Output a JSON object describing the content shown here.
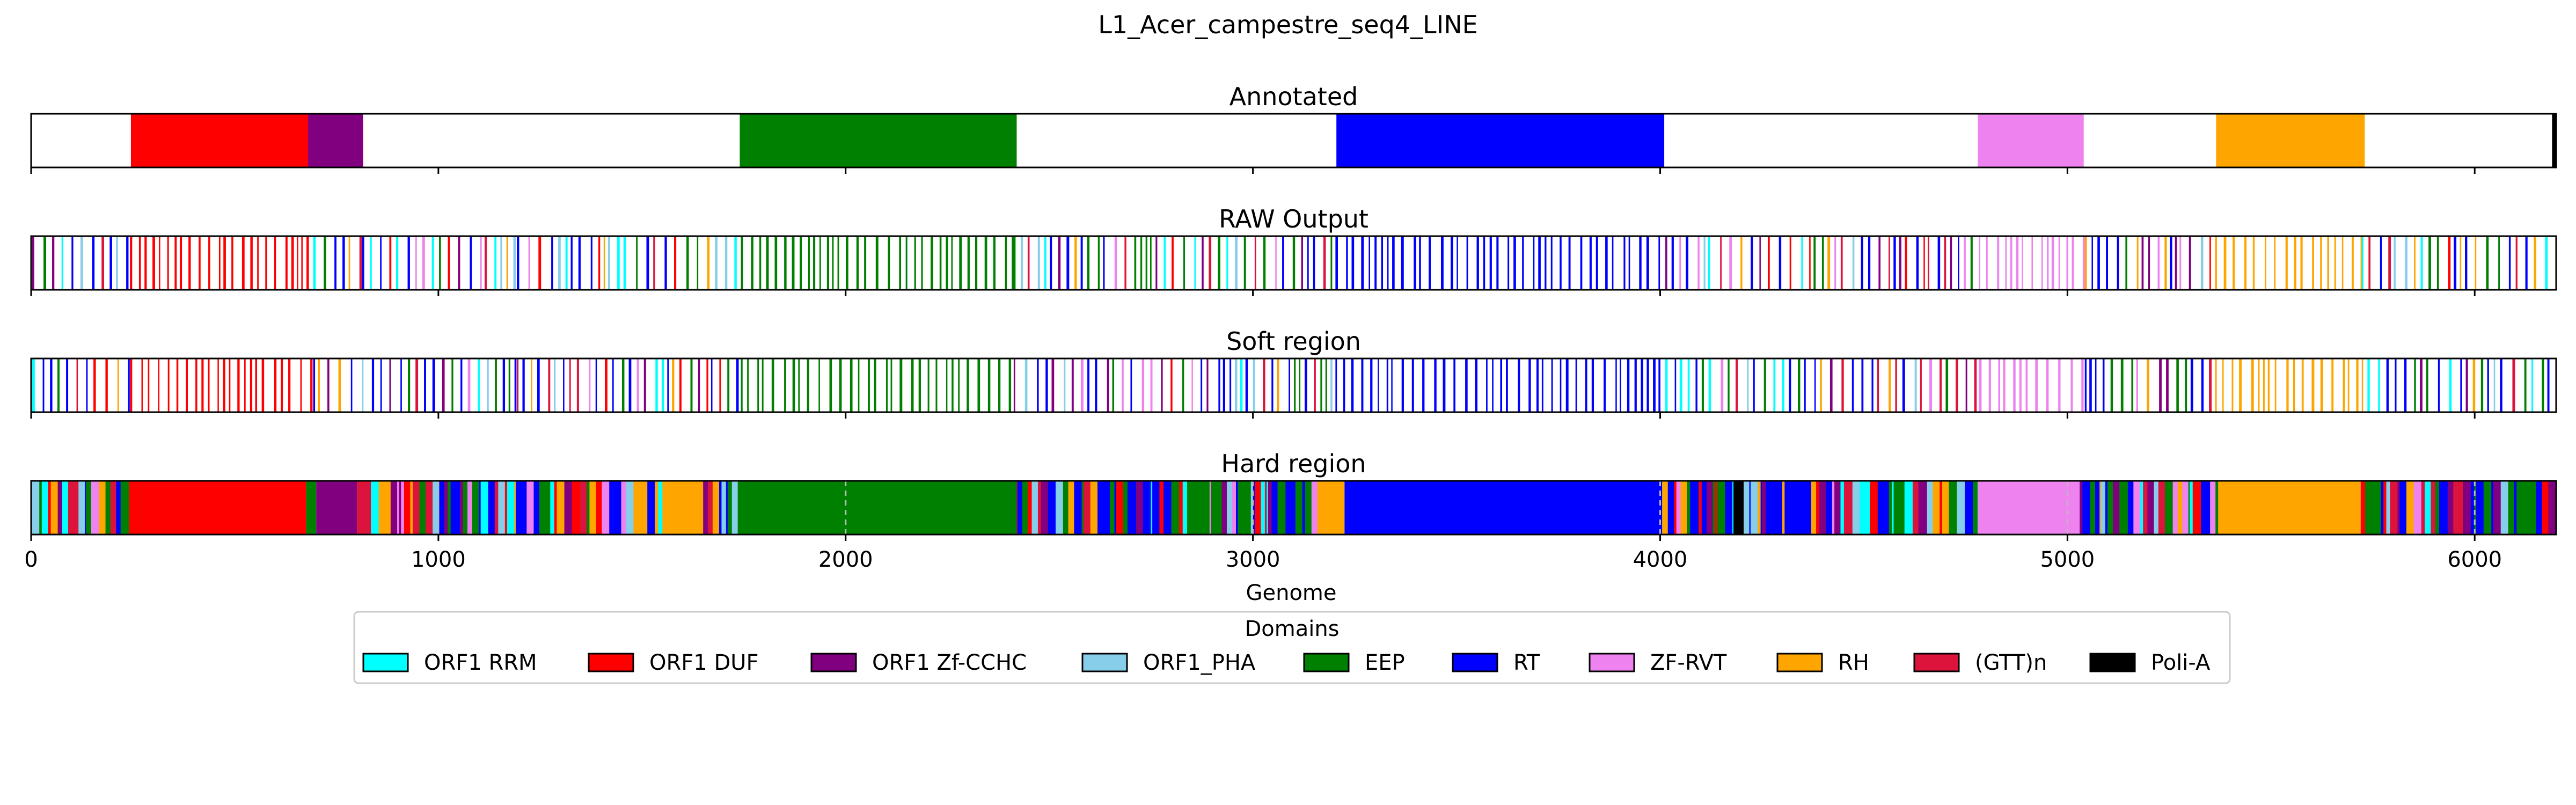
{
  "chart_data": {
    "type": "genome-track",
    "title": "L1_Acer_campestre_seq4_LINE",
    "xlabel": "Genome",
    "xlim": [
      0,
      6200
    ],
    "xticks": [
      0,
      1000,
      2000,
      3000,
      4000,
      5000,
      6000
    ],
    "grid": "dashed vertical lines at x ticks on Hard region track",
    "domains": [
      {
        "key": "rrm",
        "label": "ORF1 RRM",
        "color": "#00FFFF"
      },
      {
        "key": "duf",
        "label": "ORF1 DUF",
        "color": "#FF0000"
      },
      {
        "key": "zf",
        "label": "ORF1 Zf-CCHC",
        "color": "#800080"
      },
      {
        "key": "pha",
        "label": "ORF1_PHA",
        "color": "#87CEEB"
      },
      {
        "key": "eep",
        "label": "EEP",
        "color": "#008000"
      },
      {
        "key": "rt",
        "label": "RT",
        "color": "#0000FF"
      },
      {
        "key": "zfrvt",
        "label": "ZF-RVT",
        "color": "#EE82EE"
      },
      {
        "key": "rh",
        "label": "RH",
        "color": "#FFA500"
      },
      {
        "key": "gtt",
        "label": "(GTT)n",
        "color": "#DC143C"
      },
      {
        "key": "polia",
        "label": "Poli-A",
        "color": "#000000"
      }
    ],
    "legend_title": "Domains",
    "legend_placement": "bottom-center",
    "tracks": [
      {
        "title": "Annotated",
        "style": "solid",
        "segments": [
          {
            "start": 245,
            "end": 680,
            "domain": "duf"
          },
          {
            "start": 680,
            "end": 815,
            "domain": "zf"
          },
          {
            "start": 1740,
            "end": 2420,
            "domain": "eep"
          },
          {
            "start": 3205,
            "end": 4010,
            "domain": "rt"
          },
          {
            "start": 4780,
            "end": 5040,
            "domain": "zfrvt"
          },
          {
            "start": 5365,
            "end": 5730,
            "domain": "rh"
          },
          {
            "start": 6190,
            "end": 6200,
            "domain": "polia"
          }
        ]
      },
      {
        "title": "RAW Output",
        "style": "stripes",
        "segments": [
          {
            "start": 0,
            "end": 240,
            "domain": "mix"
          },
          {
            "start": 240,
            "end": 690,
            "domain": "duf"
          },
          {
            "start": 690,
            "end": 810,
            "domain": "mix"
          },
          {
            "start": 810,
            "end": 1190,
            "domain": "mix"
          },
          {
            "start": 1190,
            "end": 1740,
            "domain": "mix"
          },
          {
            "start": 1740,
            "end": 2410,
            "domain": "eep"
          },
          {
            "start": 2410,
            "end": 3200,
            "domain": "mix"
          },
          {
            "start": 3200,
            "end": 4010,
            "domain": "rt"
          },
          {
            "start": 4010,
            "end": 4780,
            "domain": "mix"
          },
          {
            "start": 4780,
            "end": 5040,
            "domain": "zfrvt"
          },
          {
            "start": 5040,
            "end": 5360,
            "domain": "mix"
          },
          {
            "start": 5360,
            "end": 5720,
            "domain": "rh"
          },
          {
            "start": 5720,
            "end": 6200,
            "domain": "mix"
          }
        ]
      },
      {
        "title": "Soft region",
        "style": "stripes",
        "segments": [
          {
            "start": 0,
            "end": 240,
            "domain": "mix"
          },
          {
            "start": 240,
            "end": 690,
            "domain": "duf"
          },
          {
            "start": 690,
            "end": 810,
            "domain": "mix"
          },
          {
            "start": 810,
            "end": 1190,
            "domain": "mix"
          },
          {
            "start": 1190,
            "end": 1740,
            "domain": "mix"
          },
          {
            "start": 1740,
            "end": 2410,
            "domain": "eep"
          },
          {
            "start": 2410,
            "end": 3200,
            "domain": "mix"
          },
          {
            "start": 3200,
            "end": 4010,
            "domain": "rt"
          },
          {
            "start": 4010,
            "end": 4780,
            "domain": "mix"
          },
          {
            "start": 4780,
            "end": 5040,
            "domain": "zfrvt"
          },
          {
            "start": 5040,
            "end": 5360,
            "domain": "mix"
          },
          {
            "start": 5360,
            "end": 5720,
            "domain": "rh"
          },
          {
            "start": 5720,
            "end": 6200,
            "domain": "mix"
          }
        ]
      },
      {
        "title": "Hard region",
        "style": "solid",
        "segments": [
          {
            "start": 0,
            "end": 240,
            "domain": "mix"
          },
          {
            "start": 240,
            "end": 675,
            "domain": "duf"
          },
          {
            "start": 675,
            "end": 700,
            "domain": "eep"
          },
          {
            "start": 700,
            "end": 800,
            "domain": "zf"
          },
          {
            "start": 800,
            "end": 1550,
            "domain": "mix"
          },
          {
            "start": 1550,
            "end": 1650,
            "domain": "rh"
          },
          {
            "start": 1650,
            "end": 1735,
            "domain": "mix"
          },
          {
            "start": 1735,
            "end": 2420,
            "domain": "eep"
          },
          {
            "start": 2420,
            "end": 3170,
            "domain": "mix"
          },
          {
            "start": 3170,
            "end": 3225,
            "domain": "rh"
          },
          {
            "start": 3225,
            "end": 4005,
            "domain": "rt"
          },
          {
            "start": 4005,
            "end": 4180,
            "domain": "mix"
          },
          {
            "start": 4180,
            "end": 4205,
            "domain": "polia"
          },
          {
            "start": 4205,
            "end": 4780,
            "domain": "mix"
          },
          {
            "start": 4780,
            "end": 5030,
            "domain": "zfrvt"
          },
          {
            "start": 5030,
            "end": 5370,
            "domain": "mix"
          },
          {
            "start": 5370,
            "end": 5720,
            "domain": "rh"
          },
          {
            "start": 5720,
            "end": 6200,
            "domain": "mix"
          }
        ]
      }
    ]
  }
}
